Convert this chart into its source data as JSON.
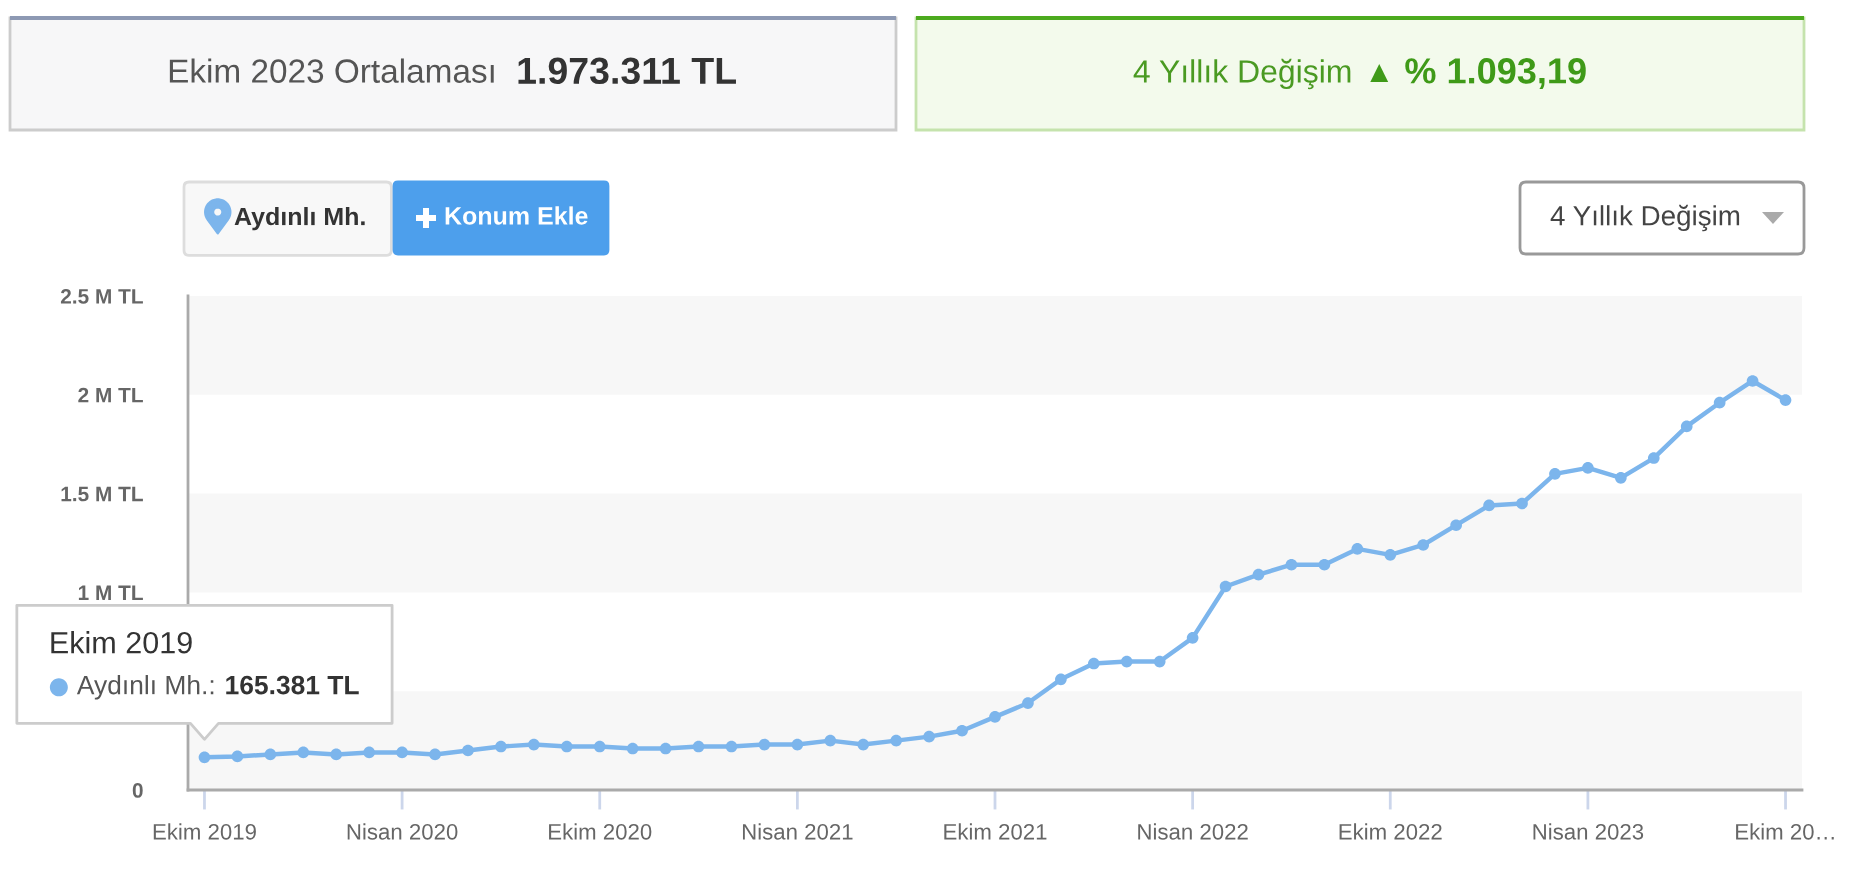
{
  "chart_data": {
    "type": "line",
    "categories": [
      "Ekim 2019",
      null,
      null,
      null,
      null,
      null,
      "Nisan 2020",
      null,
      null,
      null,
      null,
      null,
      "Ekim 2020",
      null,
      null,
      null,
      null,
      null,
      "Nisan 2021",
      null,
      null,
      null,
      null,
      null,
      "Ekim 2021",
      null,
      null,
      null,
      null,
      null,
      "Nisan 2022",
      null,
      null,
      null,
      null,
      null,
      "Ekim 2022",
      null,
      null,
      null,
      null,
      null,
      "Nisan 2023",
      null,
      null,
      null,
      null,
      null,
      "Ekim 20…"
    ],
    "series": [
      {
        "name": "Aydınlı Mh.",
        "color": "#7cb5ec",
        "values": [
          165381,
          170000,
          180000,
          190000,
          180000,
          190000,
          190000,
          180000,
          200000,
          220000,
          230000,
          220000,
          220000,
          210000,
          210000,
          220000,
          220000,
          230000,
          230000,
          250000,
          230000,
          250000,
          270000,
          300000,
          370000,
          440000,
          560000,
          640000,
          650000,
          650000,
          770000,
          1030000,
          1090000,
          1140000,
          1140000,
          1220000,
          1190000,
          1240000,
          1340000,
          1440000,
          1450000,
          1600000,
          1630000,
          1580000,
          1680000,
          1840000,
          1960000,
          2070000,
          1973311
        ]
      }
    ],
    "ylim": [
      0,
      2500000
    ],
    "yticks": [
      0,
      {
        "value": 1000000,
        "label": "1 M TL"
      },
      {
        "value": 1500000,
        "label": "1.5 M TL"
      },
      {
        "value": 2000000,
        "label": "2 M TL"
      },
      {
        "value": 2500000,
        "label": "2.5 M TL"
      }
    ],
    "bands": [
      {
        "axis": "y",
        "from": 0,
        "to": 500000,
        "color": "#f7f7f7"
      },
      {
        "axis": "y",
        "from": 1000000,
        "to": 1500000,
        "color": "#f7f7f7"
      },
      {
        "axis": "y",
        "from": 2000000,
        "to": 2500000,
        "color": "#f7f7f7"
      }
    ],
    "marker": "circle",
    "line_style": "solid",
    "legend": "top left",
    "annotations": [
      "Ekim 2023 Ortalaması",
      "1.973.311 TL",
      "4 Yıllık Değişim",
      "▲",
      "% 1.093,19",
      "Konum Ekle",
      "4 Yıllık Değişim",
      "Ekim 2019",
      "Aydınlı Mh.:",
      "165.381 TL"
    ]
  }
}
